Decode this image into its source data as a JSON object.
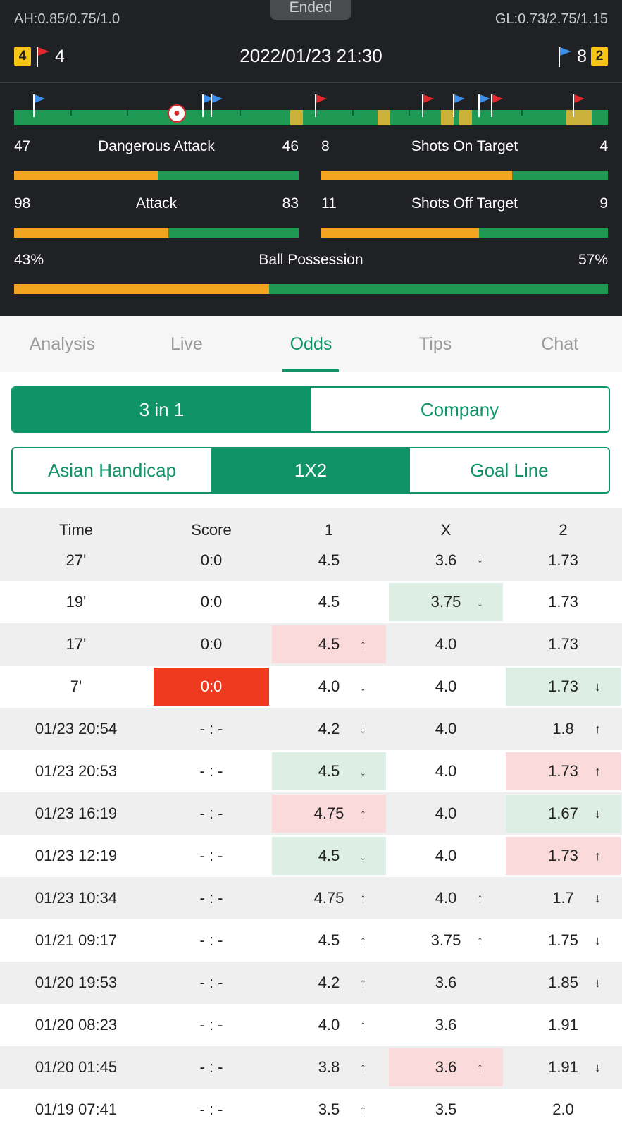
{
  "header": {
    "status": "Ended",
    "ah_odds": "AH:0.85/0.75/1.0",
    "gl_odds": "GL:0.73/2.75/1.15",
    "kickoff": "2022/01/23 21:30",
    "home": {
      "yellow_cards": "4",
      "corners": "4"
    },
    "away": {
      "yellow_cards": "2",
      "corners": "8"
    },
    "colors": {
      "home_bar": "#f5a422",
      "away_bar": "#1f9a55",
      "accent": "#0f9367"
    }
  },
  "stats": {
    "dangerous_attack": {
      "label": "Dangerous Attack",
      "home": "47",
      "away": "46",
      "home_share": 0.505
    },
    "shots_on_target": {
      "label": "Shots On Target",
      "home": "8",
      "away": "4",
      "home_share": 0.667
    },
    "attack": {
      "label": "Attack",
      "home": "98",
      "away": "83",
      "home_share": 0.541
    },
    "shots_off_target": {
      "label": "Shots Off Target",
      "home": "11",
      "away": "9",
      "home_share": 0.55
    },
    "possession": {
      "label": "Ball Possession",
      "home": "43%",
      "away": "57%",
      "home_share": 0.43
    }
  },
  "tabs": [
    "Analysis",
    "Live",
    "Odds",
    "Tips",
    "Chat"
  ],
  "active_tab": "Odds",
  "view_toggle": {
    "left": "3in1",
    "left_label": "3 in 1",
    "right_label": "Company"
  },
  "market_toggle": {
    "asian": "Asian Handicap",
    "onextwo": "1X2",
    "goal_line": "Goal Line"
  },
  "table": {
    "headers": {
      "time": "Time",
      "score": "Score",
      "one": "1",
      "x": "X",
      "two": "2"
    },
    "rows": [
      {
        "time": "27'",
        "score": "0:0",
        "one": "4.5",
        "one_dir": "",
        "x": "3.6",
        "x_dir": "down",
        "two": "1.73",
        "two_dir": ""
      },
      {
        "time": "19'",
        "score": "0:0",
        "one": "4.5",
        "one_dir": "",
        "x": "3.75",
        "x_dir": "down",
        "two": "1.73",
        "two_dir": ""
      },
      {
        "time": "17'",
        "score": "0:0",
        "one": "4.5",
        "one_dir": "up",
        "x": "4.0",
        "x_dir": "",
        "two": "1.73",
        "two_dir": ""
      },
      {
        "time": "7'",
        "score": "0:0",
        "one": "4.0",
        "one_dir": "down",
        "x": "4.0",
        "x_dir": "",
        "two": "1.73",
        "two_dir": "down"
      },
      {
        "time": "01/23 20:54",
        "score": "- : -",
        "one": "4.2",
        "one_dir": "down",
        "x": "4.0",
        "x_dir": "",
        "two": "1.8",
        "two_dir": "up"
      },
      {
        "time": "01/23 20:53",
        "score": "- : -",
        "one": "4.5",
        "one_dir": "down",
        "x": "4.0",
        "x_dir": "",
        "two": "1.73",
        "two_dir": "up"
      },
      {
        "time": "01/23 16:19",
        "score": "- : -",
        "one": "4.75",
        "one_dir": "up",
        "x": "4.0",
        "x_dir": "",
        "two": "1.67",
        "two_dir": "down"
      },
      {
        "time": "01/23 12:19",
        "score": "- : -",
        "one": "4.5",
        "one_dir": "down",
        "x": "4.0",
        "x_dir": "",
        "two": "1.73",
        "two_dir": "up"
      },
      {
        "time": "01/23 10:34",
        "score": "- : -",
        "one": "4.75",
        "one_dir": "up",
        "x": "4.0",
        "x_dir": "up",
        "two": "1.7",
        "two_dir": "down"
      },
      {
        "time": "01/21 09:17",
        "score": "- : -",
        "one": "4.5",
        "one_dir": "up",
        "x": "3.75",
        "x_dir": "up",
        "two": "1.75",
        "two_dir": "down"
      },
      {
        "time": "01/20 19:53",
        "score": "- : -",
        "one": "4.2",
        "one_dir": "up",
        "x": "3.6",
        "x_dir": "",
        "two": "1.85",
        "two_dir": "down"
      },
      {
        "time": "01/20 08:23",
        "score": "- : -",
        "one": "4.0",
        "one_dir": "up",
        "x": "3.6",
        "x_dir": "",
        "two": "1.91",
        "two_dir": ""
      },
      {
        "time": "01/20 01:45",
        "score": "- : -",
        "one": "3.8",
        "one_dir": "up",
        "x": "3.6",
        "x_dir": "up",
        "two": "1.91",
        "two_dir": "down"
      },
      {
        "time": "01/19 07:41",
        "score": "- : -",
        "one": "3.5",
        "one_dir": "up",
        "x": "3.5",
        "x_dir": "",
        "two": "2.0",
        "two_dir": ""
      }
    ],
    "highlights": {
      "1": {
        "x": "down"
      },
      "2": {
        "one": "up"
      },
      "3": {
        "score": "red",
        "two": "down"
      },
      "5": {
        "one": "down",
        "two": "up"
      },
      "6": {
        "one": "up",
        "two": "down"
      },
      "7": {
        "one": "down",
        "two": "up"
      },
      "12": {
        "x": "up"
      }
    }
  }
}
